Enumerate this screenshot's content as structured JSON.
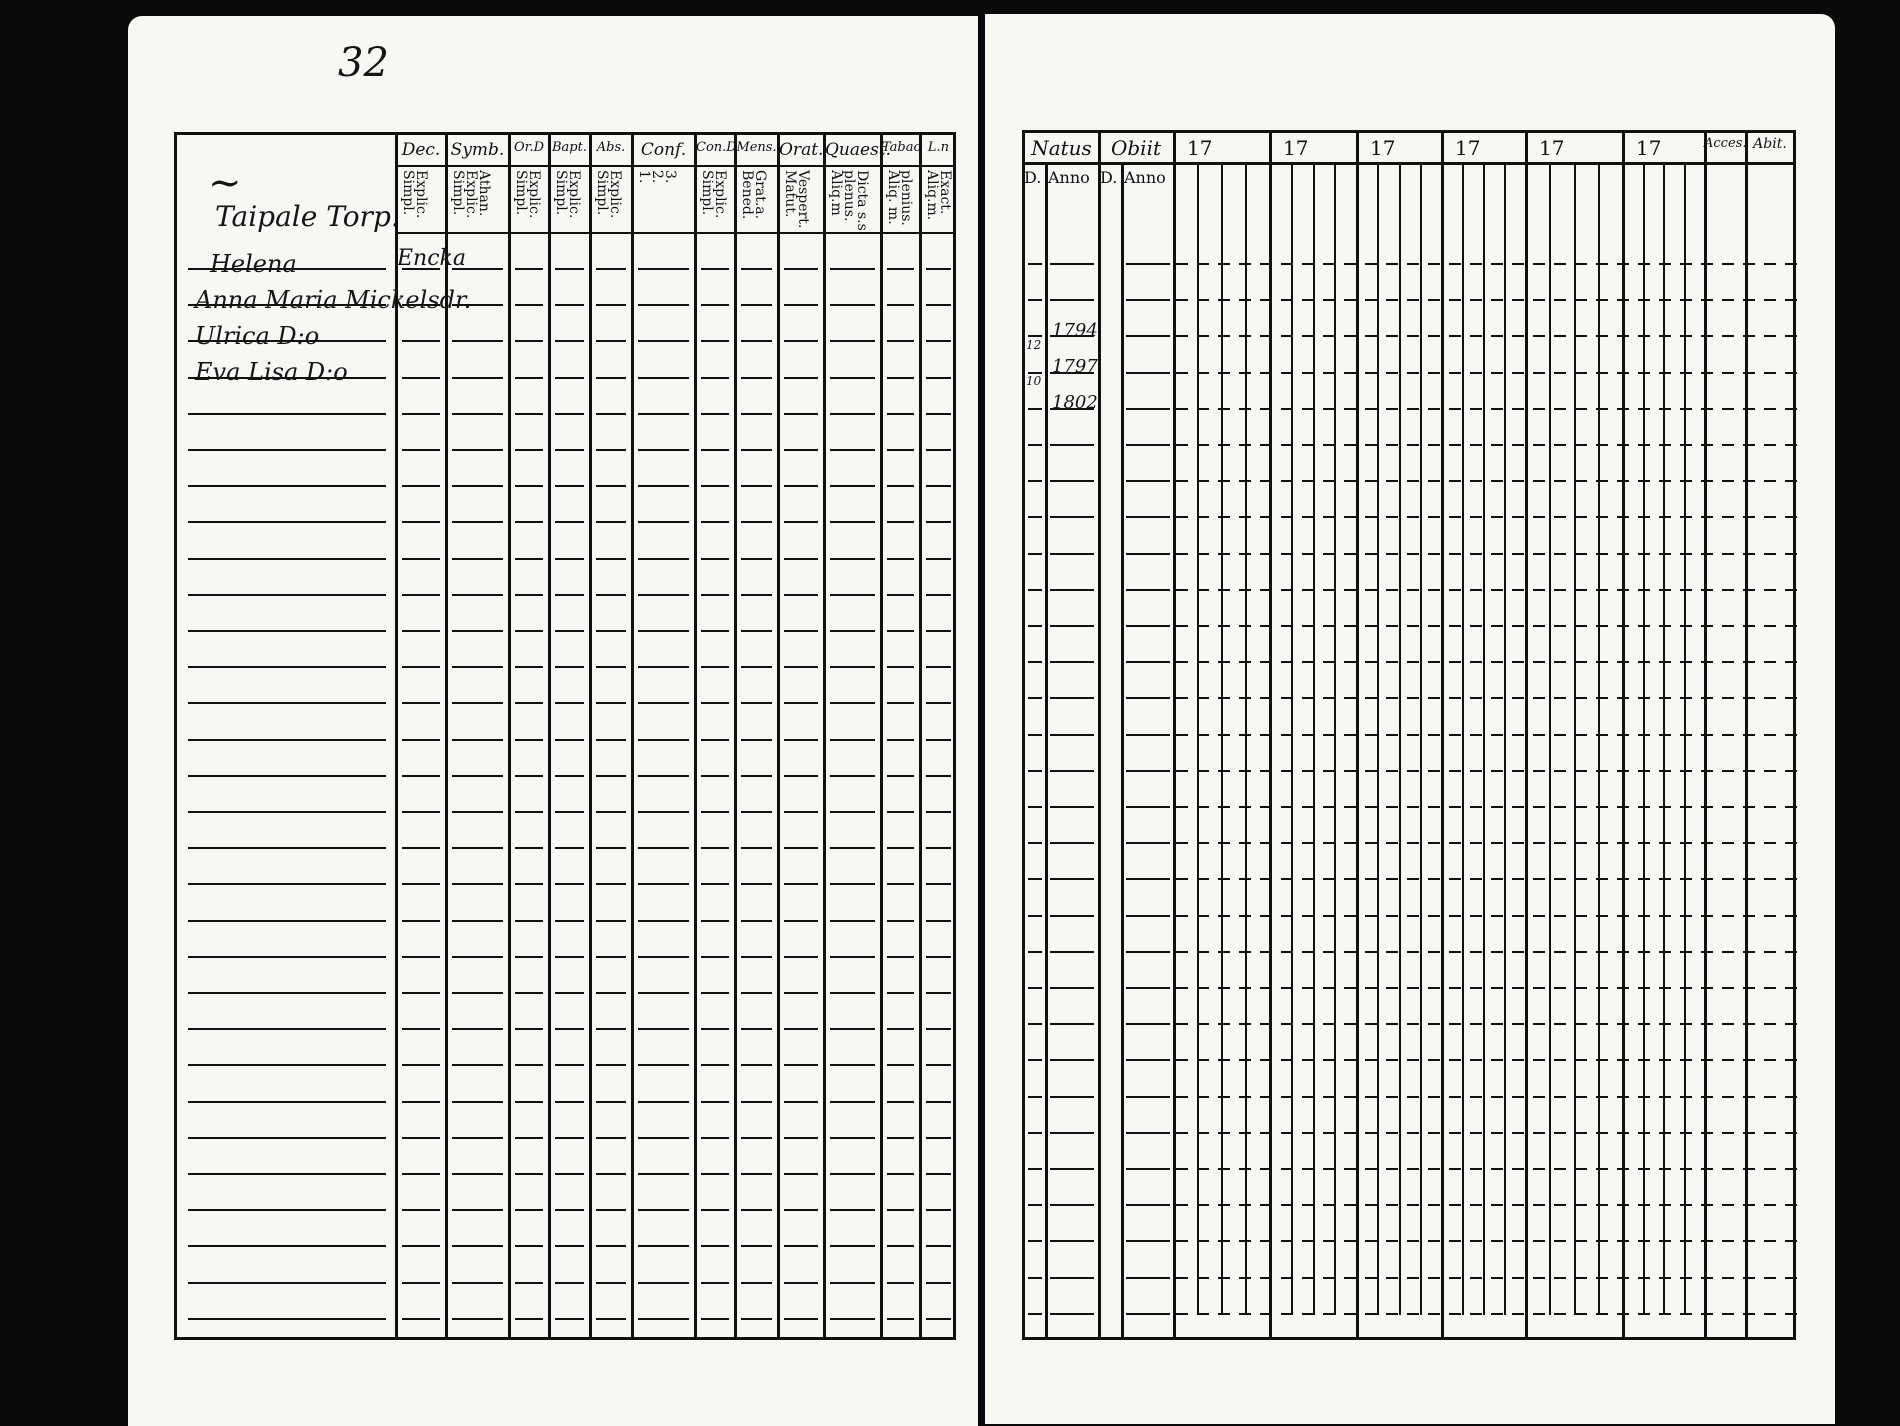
{
  "left_page": {
    "page_number": "32",
    "place": "Taipale Torp.",
    "headers": [
      {
        "label": "Dec.",
        "sub": "Explic.\nSimpl."
      },
      {
        "label": "Symb.",
        "sub": "Athan.\nExplic.\nSimpl."
      },
      {
        "label": "Or.D",
        "sub": "Explic.\nSimpl."
      },
      {
        "label": "Bapt.",
        "sub": "Explic.\nSimpl."
      },
      {
        "label": "Abs.",
        "sub": "Explic.\nSimpl."
      },
      {
        "label": "Conf.",
        "sub": "3.\n2.\n1."
      },
      {
        "label": "Con.D",
        "sub": "Explic.\nSimpl."
      },
      {
        "label": "Mens.",
        "sub": "Grat.a.\nBened."
      },
      {
        "label": "Orat.",
        "sub": "Vespert.\nMatut."
      },
      {
        "label": "Quaest.",
        "sub": "Dicta s.s\nplenus.\nAliq.m"
      },
      {
        "label": "Tabac",
        "sub": "plenius.\nAliq. m."
      },
      {
        "label": "L.n",
        "sub": "Exact.\nAliq.m."
      }
    ],
    "persons": [
      {
        "name": "Helena",
        "dec": "Encka"
      },
      {
        "name": "Anna Maria Mickelsdr.",
        "dec": ""
      },
      {
        "name": "Ulrica D:o",
        "dec": ""
      },
      {
        "name": "Eva Lisa D:o",
        "dec": ""
      }
    ]
  },
  "right_page": {
    "natus": "Natus",
    "obiit": "Obiit",
    "d": "D.",
    "anno": "Anno",
    "years": [
      "17",
      "17",
      "17",
      "17",
      "17",
      "17"
    ],
    "accessit": "Acces.",
    "abiit": "Abit.",
    "births": [
      {
        "day": "12",
        "year": "1794"
      },
      {
        "day": "10",
        "year": "1797"
      },
      {
        "day": "",
        "year": "1802"
      }
    ]
  },
  "colors": {
    "ink": "#111111",
    "paper": "#f7f7f4",
    "background": "#0a0a0a"
  }
}
